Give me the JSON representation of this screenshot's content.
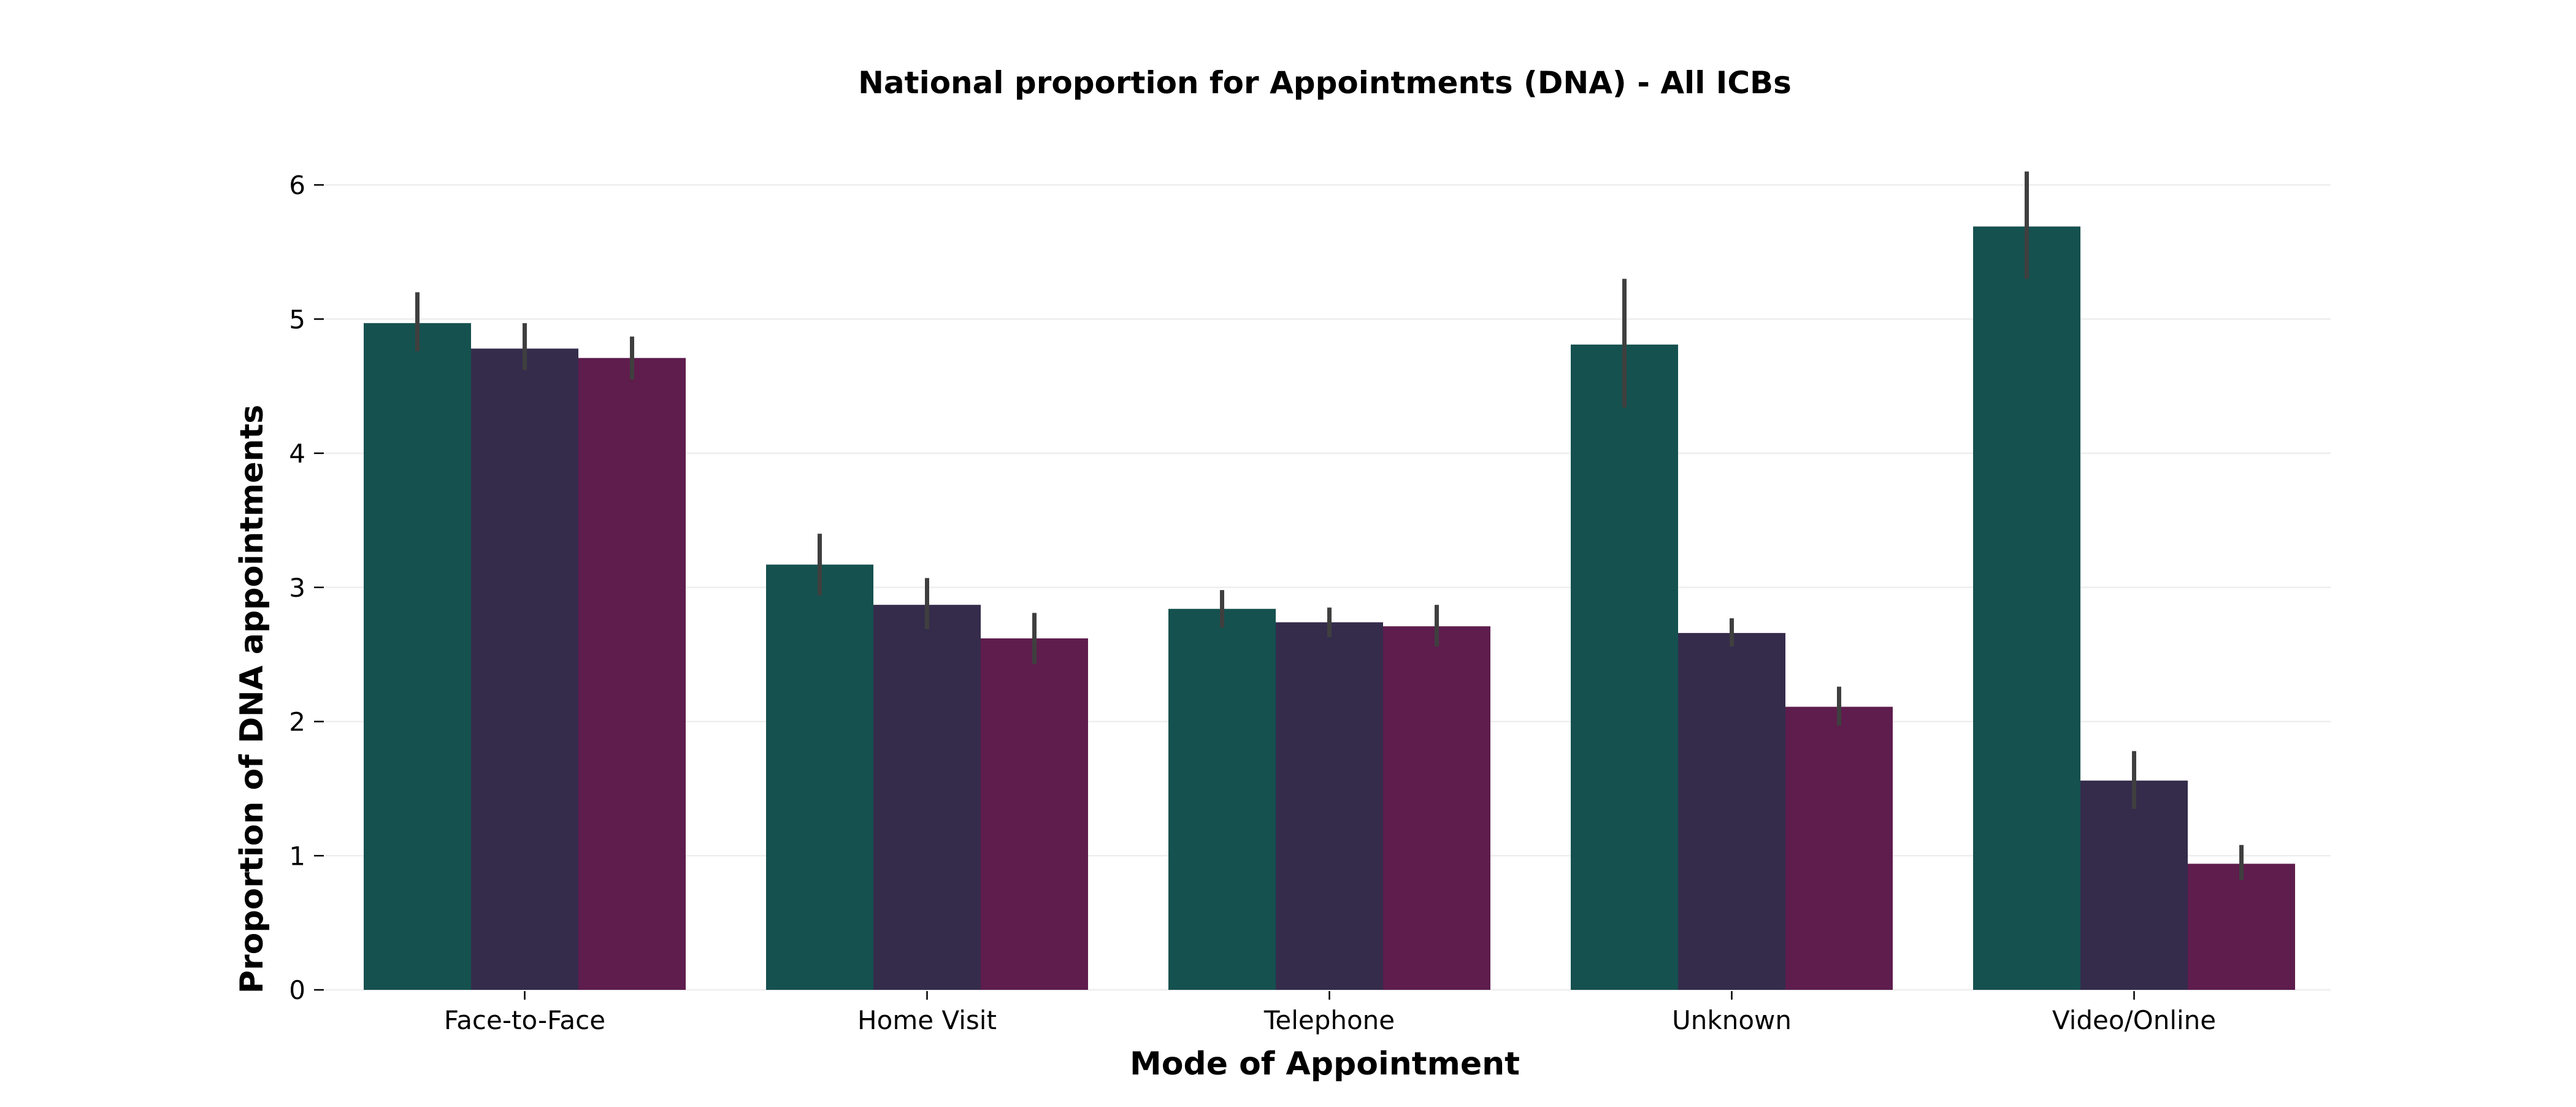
{
  "chart_data": {
    "type": "bar",
    "title": "National proportion for Appointments (DNA) - All ICBs",
    "xlabel": "Mode of Appointment",
    "ylabel": "Proportion of DNA appointments",
    "categories": [
      "Face-to-Face",
      "Home Visit",
      "Telephone",
      "Unknown",
      "Video/Online"
    ],
    "ylim": [
      0,
      6.3
    ],
    "yticks": [
      0,
      1,
      2,
      3,
      4,
      5,
      6
    ],
    "grid": true,
    "legend": "none",
    "series": [
      {
        "color": "#15514f",
        "values": [
          4.97,
          3.17,
          2.84,
          4.81,
          5.69
        ],
        "error_low": [
          4.76,
          2.94,
          2.7,
          4.34,
          5.3
        ],
        "error_high": [
          5.2,
          3.4,
          2.98,
          5.3,
          6.1
        ]
      },
      {
        "color": "#352c4c",
        "values": [
          4.78,
          2.87,
          2.74,
          2.66,
          1.56
        ],
        "error_low": [
          4.62,
          2.69,
          2.63,
          2.56,
          1.35
        ],
        "error_high": [
          4.97,
          3.07,
          2.85,
          2.77,
          1.78
        ]
      },
      {
        "color": "#5e1d4d",
        "values": [
          4.71,
          2.62,
          2.71,
          2.11,
          0.94
        ],
        "error_low": [
          4.55,
          2.43,
          2.56,
          1.97,
          0.82
        ],
        "error_high": [
          4.87,
          2.81,
          2.87,
          2.26,
          1.08
        ]
      }
    ]
  }
}
